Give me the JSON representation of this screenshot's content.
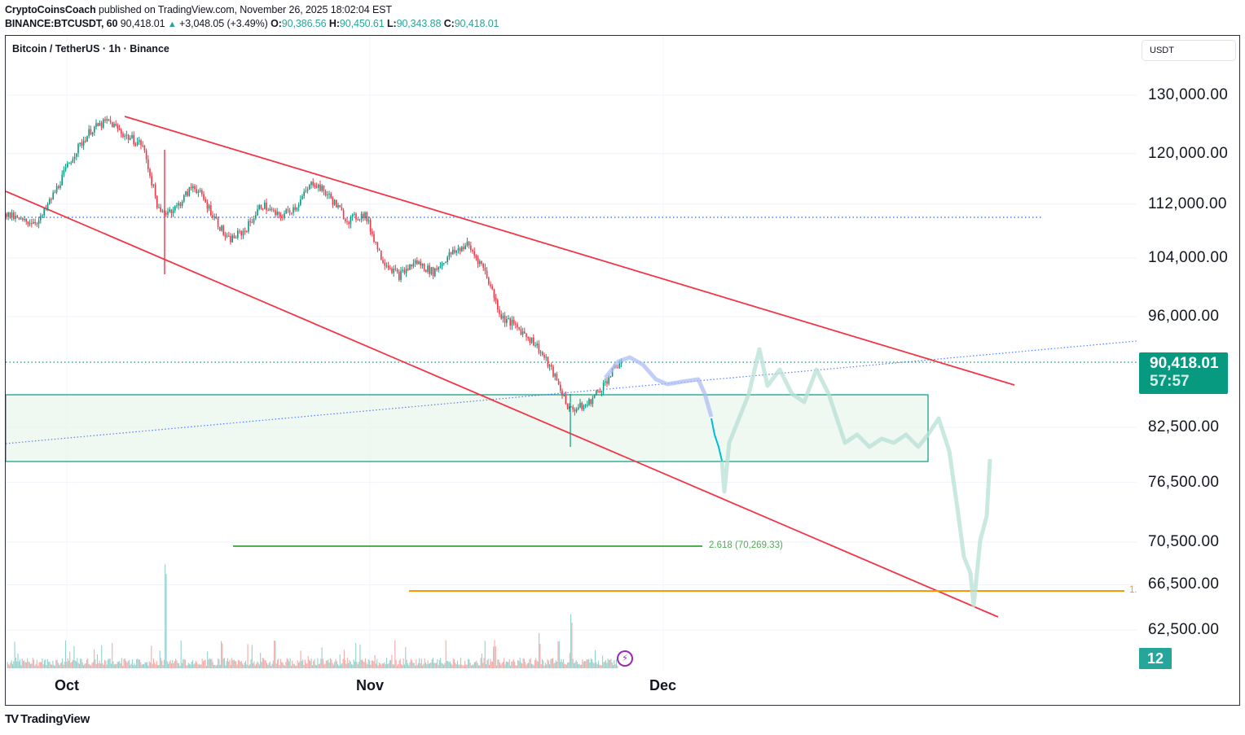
{
  "header": {
    "author": "CryptoCoinsCoach",
    "published": "published on TradingView.com, November 26, 2025 18:02:04 EST",
    "symbol": "BINANCE:BTCUSDT, 60",
    "last": "90,418.01",
    "change_arrow": "▲",
    "change": "+3,048.05 (+3.49%)",
    "o_label": "O:",
    "o": "90,386.56",
    "h_label": "H:",
    "h": "90,450.61",
    "l_label": "L:",
    "l": "90,343.88",
    "c_label": "C:",
    "c": "90,418.01"
  },
  "chart": {
    "legend_title": "Bitcoin / TetherUS · 1h · Binance",
    "currency": "USDT",
    "price_tag": {
      "price": "90,418.01",
      "countdown": "57:57",
      "color": "#089981"
    },
    "volume_tag": "12",
    "fib_label": "2.618 (70,269.33)",
    "orange_label": "1.",
    "flash_icon": "⚡",
    "watermark": "TradingView",
    "watermark_mark": "TV"
  },
  "colors": {
    "up": "#089981",
    "down": "#f23645",
    "trendline": "#f23645",
    "zone_fill": "#e9f5ec",
    "zone_border": "#089981",
    "fib_green": "#4caf50",
    "orange": "#ff9800",
    "dotted_blue": "#2962ff",
    "dotted_teal": "#089981",
    "projection_blue": "#aab9f5",
    "projection_teal": "#b7e0d6",
    "projection_cyan": "#00bcd4"
  },
  "chart_data": {
    "type": "candlestick",
    "title": "Bitcoin / TetherUS · 1h · Binance",
    "symbol": "BINANCE:BTCUSDT",
    "interval": "60",
    "xlabel": "",
    "ylabel": "USDT",
    "x_tick_labels": [
      "Oct",
      "Nov",
      "Dec"
    ],
    "y_tick_labels": [
      "130,000.00",
      "120,000.00",
      "112,000.00",
      "104,000.00",
      "96,000.00",
      "82,500.00",
      "76,500.00",
      "70,500.00",
      "66,500.00",
      "62,500.00"
    ],
    "y_ticks": [
      130000,
      120000,
      112000,
      104000,
      96000,
      82500,
      76500,
      70500,
      66500,
      62500
    ],
    "y_scale": "log",
    "ylim": [
      59000,
      136000
    ],
    "last_price": 90418.01,
    "ohlc_last": {
      "open": 90386.56,
      "high": 90450.61,
      "low": 90343.88,
      "close": 90418.01
    },
    "approx_close_path": [
      [
        "Sep 26",
        110500
      ],
      [
        "Sep 28",
        109300
      ],
      [
        "Sep 30",
        109500
      ],
      [
        "Oct 1",
        114500
      ],
      [
        "Oct 3",
        120000
      ],
      [
        "Oct 5",
        124000
      ],
      [
        "Oct 6",
        125500
      ],
      [
        "Oct 8",
        123000
      ],
      [
        "Oct 10",
        121500
      ],
      [
        "Oct 10 crash",
        110500
      ],
      [
        "Oct 11",
        111500
      ],
      [
        "Oct 13",
        115000
      ],
      [
        "Oct 15",
        111000
      ],
      [
        "Oct 17",
        106500
      ],
      [
        "Oct 19",
        108000
      ],
      [
        "Oct 21",
        112000
      ],
      [
        "Oct 23",
        110000
      ],
      [
        "Oct 25",
        111700
      ],
      [
        "Oct 27",
        115500
      ],
      [
        "Oct 29",
        113000
      ],
      [
        "Oct 31",
        109500
      ],
      [
        "Nov 2",
        110500
      ],
      [
        "Nov 4",
        104000
      ],
      [
        "Nov 5",
        101500
      ],
      [
        "Nov 7",
        103500
      ],
      [
        "Nov 9",
        102000
      ],
      [
        "Nov 11",
        104500
      ],
      [
        "Nov 12",
        106000
      ],
      [
        "Nov 14",
        102500
      ],
      [
        "Nov 15",
        96000
      ],
      [
        "Nov 17",
        94500
      ],
      [
        "Nov 18",
        92500
      ],
      [
        "Nov 20",
        89000
      ],
      [
        "Nov 21",
        84500
      ],
      [
        "Nov 22",
        85000
      ],
      [
        "Nov 24",
        87500
      ],
      [
        "Nov 26",
        90418
      ]
    ],
    "annotations": [
      {
        "type": "descending_channel_upper",
        "from": 125500,
        "to": 88000,
        "color": "#f23645"
      },
      {
        "type": "descending_channel_lower",
        "from": 113000,
        "to": 63000,
        "color": "#f23645"
      },
      {
        "type": "horizontal_dotted",
        "price": 110500,
        "color": "#2962ff"
      },
      {
        "type": "horizontal_dotted",
        "price": 90418.01,
        "color": "#089981"
      },
      {
        "type": "rising_dotted_trendline",
        "color": "#2962ff"
      },
      {
        "type": "demand_zone_rectangle",
        "top": 86500,
        "bottom": 79500,
        "color": "#089981"
      },
      {
        "type": "fib_level",
        "label": "2.618 (70,269.33)",
        "price": 70269.33,
        "color": "#4caf50"
      },
      {
        "type": "horizontal_level",
        "label": "1.",
        "price": 65500,
        "color": "#ff9800"
      },
      {
        "type": "bars_pattern_projection",
        "note": "ghost projected price path into Dec, dipping to ~65,000 then bouncing to ~78,000"
      }
    ],
    "volume": {
      "last": 12,
      "spikes": [
        "Oct 10",
        "Nov 21"
      ]
    }
  }
}
